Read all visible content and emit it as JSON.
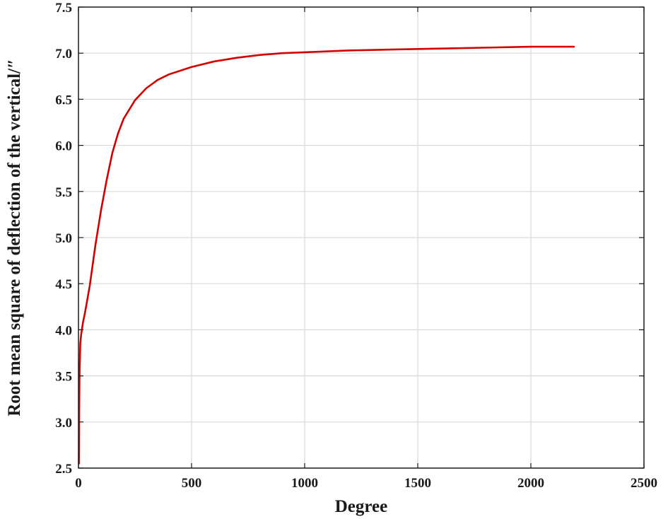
{
  "chart_data": {
    "type": "line",
    "title": "",
    "xlabel": "Degree",
    "ylabel": "Root mean square of deflection of the vertical/″",
    "xlim": [
      0,
      2500
    ],
    "ylim": [
      2.5,
      7.5
    ],
    "xticks": [
      0,
      500,
      1000,
      1500,
      2000,
      2500
    ],
    "xtick_labels": [
      "0",
      "500",
      "1000",
      "1500",
      "2000",
      "2500"
    ],
    "yticks": [
      2.5,
      3.0,
      3.5,
      4.0,
      4.5,
      5.0,
      5.5,
      6.0,
      6.5,
      7.0,
      7.5
    ],
    "ytick_labels": [
      "2.5",
      "3.0",
      "3.5",
      "4.0",
      "4.5",
      "5.0",
      "5.5",
      "6.0",
      "6.5",
      "7.0",
      "7.5"
    ],
    "grid": true,
    "legend": "none",
    "series": [
      {
        "color": "#d40000",
        "x": [
          2,
          3,
          5,
          8,
          12,
          20,
          30,
          50,
          75,
          100,
          125,
          150,
          175,
          200,
          250,
          300,
          350,
          400,
          450,
          500,
          600,
          700,
          800,
          900,
          1000,
          1200,
          1400,
          1600,
          1800,
          2000,
          2190
        ],
        "y": [
          2.55,
          3.1,
          3.55,
          3.85,
          3.95,
          4.08,
          4.2,
          4.48,
          4.92,
          5.3,
          5.63,
          5.92,
          6.13,
          6.29,
          6.49,
          6.62,
          6.71,
          6.77,
          6.81,
          6.85,
          6.91,
          6.95,
          6.98,
          7.0,
          7.01,
          7.03,
          7.04,
          7.05,
          7.06,
          7.07,
          7.07
        ]
      }
    ]
  }
}
